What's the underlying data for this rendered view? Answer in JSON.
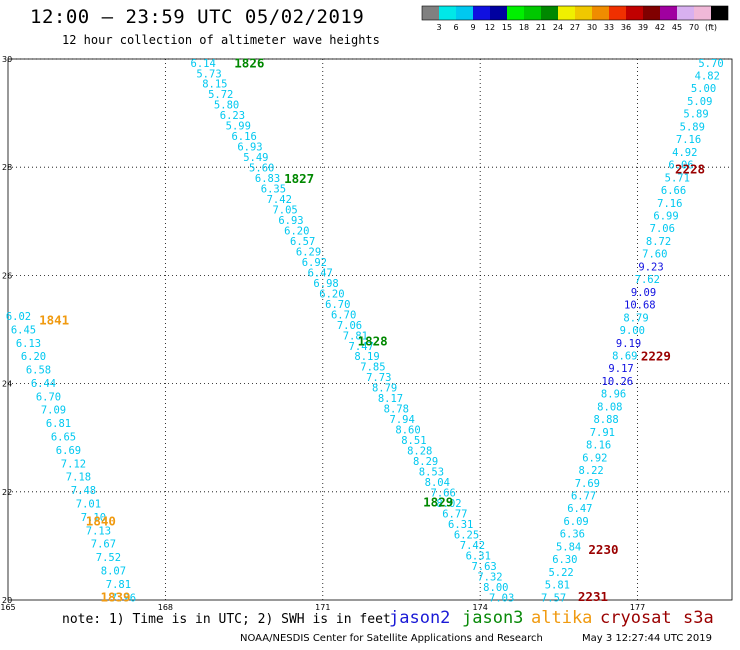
{
  "header": {
    "title": "12:00 – 23:59 UTC 05/02/2019",
    "subtitle": "12 hour collection of altimeter wave heights"
  },
  "footer": {
    "note": "note: 1) Time is in UTC; 2) SWH is in feet",
    "credit": "NOAA/NESDIS Center for Satellite Applications and Research",
    "timestamp": "May  3 12:27:44 UTC 2019"
  },
  "satellites": [
    {
      "name": "jason2",
      "color": "#1a1ad6"
    },
    {
      "name": "jason3",
      "color": "#0a8a0a"
    },
    {
      "name": "altika",
      "color": "#f09a10"
    },
    {
      "name": "cryosat",
      "color": "#9a0000"
    },
    {
      "name": "s3a",
      "color": "#9a0000"
    }
  ],
  "chart_data": {
    "type": "scatter",
    "title": "12:00 – 23:59 UTC 05/02/2019",
    "subtitle": "12 hour collection of altimeter wave heights",
    "xlim": [
      165,
      178.8
    ],
    "ylim": [
      20,
      30
    ],
    "x_ticks": [
      "165",
      "168",
      "171",
      "174",
      "177"
    ],
    "x_tick_values": [
      165,
      168,
      171,
      174,
      177
    ],
    "y_ticks": [
      "20",
      "22",
      "24",
      "26",
      "28",
      "30"
    ],
    "y_tick_values": [
      20,
      22,
      24,
      26,
      28,
      30
    ],
    "grid": true,
    "colorbar": {
      "labels": [
        "3",
        "6",
        "9",
        "12",
        "15",
        "18",
        "21",
        "24",
        "27",
        "30",
        "33",
        "36",
        "39",
        "42",
        "45",
        "70",
        "(ft)"
      ],
      "colors": [
        "#808080",
        "#00e8e8",
        "#00c8f0",
        "#1010e0",
        "#0000a0",
        "#00f000",
        "#00c800",
        "#008800",
        "#f0f000",
        "#f0c800",
        "#f08c00",
        "#f03000",
        "#c00000",
        "#800000",
        "#a000a0",
        "#d8b0f0",
        "#f0b8d8",
        "#000000"
      ]
    },
    "tracks": [
      {
        "x0": 168.72,
        "x1": 174.41,
        "points": [
          "6.14",
          "5.73",
          "8.15",
          "5.72",
          "5.80",
          "6.23",
          "5.99",
          "6.16",
          "6.93",
          "5.49",
          "5.60",
          "6.83",
          "6.35",
          "7.42",
          "7.05",
          "6.93",
          "6.20",
          "6.57",
          "6.29",
          "6.92",
          "6.47",
          "6.98",
          "6.20",
          "6.70",
          "6.70",
          "7.06",
          "7.81",
          "7.47",
          "8.19",
          "7.85",
          "7.73",
          "8.79",
          "8.17",
          "8.78",
          "7.94",
          "8.60",
          "8.51",
          "8.28",
          "8.29",
          "8.53",
          "8.04",
          "7.66",
          "8.02",
          "6.77",
          "6.31",
          "6.25",
          "7.42",
          "6.31",
          "7.63",
          "7.32",
          "8.00",
          "7.03"
        ],
        "colors": [
          "#00c8f0",
          "#00c8f0",
          "#00c8f0",
          "#00c8f0",
          "#00c8f0",
          "#00c8f0",
          "#00c8f0",
          "#00c8f0",
          "#00c8f0",
          "#00c8f0",
          "#00c8f0",
          "#00c8f0",
          "#00c8f0",
          "#00c8f0",
          "#00c8f0",
          "#00c8f0",
          "#00c8f0",
          "#00c8f0",
          "#00c8f0",
          "#00c8f0",
          "#00c8f0",
          "#00c8f0",
          "#00c8f0",
          "#00c8f0",
          "#00c8f0",
          "#00c8f0",
          "#00c8f0",
          "#00c8f0",
          "#00c8f0",
          "#00c8f0",
          "#00c8f0",
          "#00c8f0",
          "#00c8f0",
          "#00c8f0",
          "#00c8f0",
          "#00c8f0",
          "#00c8f0",
          "#00c8f0",
          "#00c8f0",
          "#00c8f0",
          "#00c8f0",
          "#00c8f0",
          "#00c8f0",
          "#00c8f0",
          "#00c8f0",
          "#00c8f0",
          "#00c8f0",
          "#00c8f0",
          "#00c8f0",
          "#00c8f0",
          "#00c8f0",
          "#00c8f0"
        ]
      },
      {
        "x0": 165.2,
        "x1": 167.2,
        "points": [
          "6.02",
          "6.45",
          "6.13",
          "6.20",
          "6.58",
          "6.44",
          "6.70",
          "7.09",
          "6.81",
          "6.65",
          "6.69",
          "7.12",
          "7.18",
          "7.48",
          "7.01",
          "7.10",
          "7.13",
          "7.67",
          "7.52",
          "8.07",
          "7.81",
          "7.96"
        ],
        "colors": [
          "#00c8f0",
          "#00c8f0",
          "#00c8f0",
          "#00c8f0",
          "#00c8f0",
          "#00c8f0",
          "#00c8f0",
          "#00c8f0",
          "#00c8f0",
          "#00c8f0",
          "#00c8f0",
          "#00c8f0",
          "#00c8f0",
          "#00c8f0",
          "#00c8f0",
          "#00c8f0",
          "#00c8f0",
          "#00c8f0",
          "#00c8f0",
          "#00c8f0",
          "#00c8f0",
          "#00c8f0"
        ]
      },
      {
        "x0": 178.4,
        "x1": 175.4,
        "points": [
          "5.70",
          "4.82",
          "5.00",
          "5.09",
          "5.89",
          "5.89",
          "7.16",
          "4.92",
          "6.06",
          "5.71",
          "6.66",
          "7.16",
          "6.99",
          "7.06",
          "8.72",
          "7.60",
          "9.23",
          "7.62",
          "9.09",
          "10.68",
          "8.79",
          "9.00",
          "9.19",
          "8.69",
          "9.17",
          "10.26",
          "8.96",
          "8.08",
          "8.88",
          "7.91",
          "8.16",
          "6.92",
          "8.22",
          "7.69",
          "6.77",
          "6.47",
          "6.09",
          "6.36",
          "5.84",
          "6.30",
          "5.22",
          "5.81",
          "7.57"
        ],
        "colors": [
          "#00c8f0",
          "#00c8f0",
          "#00c8f0",
          "#00c8f0",
          "#00c8f0",
          "#00c8f0",
          "#00c8f0",
          "#00c8f0",
          "#00c8f0",
          "#00c8f0",
          "#00c8f0",
          "#00c8f0",
          "#00c8f0",
          "#00c8f0",
          "#00c8f0",
          "#00c8f0",
          "#1010e0",
          "#00c8f0",
          "#1010e0",
          "#1010e0",
          "#00c8f0",
          "#00c8f0",
          "#1010e0",
          "#00c8f0",
          "#1010e0",
          "#1010e0",
          "#00c8f0",
          "#00c8f0",
          "#00c8f0",
          "#00c8f0",
          "#00c8f0",
          "#00c8f0",
          "#00c8f0",
          "#00c8f0",
          "#00c8f0",
          "#00c8f0",
          "#00c8f0",
          "#00c8f0",
          "#00c8f0",
          "#00c8f0",
          "#00c8f0",
          "#00c8f0",
          "#00c8f0"
        ]
      }
    ],
    "pass_labels": [
      {
        "text": "1826",
        "x": 169.6,
        "y": 29.92,
        "color": "#008800"
      },
      {
        "text": "1827",
        "x": 170.55,
        "y": 27.78,
        "color": "#008800"
      },
      {
        "text": "1828",
        "x": 171.95,
        "y": 24.78,
        "color": "#008800"
      },
      {
        "text": "1829",
        "x": 173.2,
        "y": 21.8,
        "color": "#008800"
      },
      {
        "text": "1841",
        "x": 165.88,
        "y": 25.17,
        "color": "#f09a10"
      },
      {
        "text": "1840",
        "x": 166.77,
        "y": 21.45,
        "color": "#f09a10"
      },
      {
        "text": "1839",
        "x": 167.05,
        "y": 20.05,
        "color": "#f09a10"
      },
      {
        "text": "2228",
        "x": 178.0,
        "y": 27.96,
        "color": "#9a0000"
      },
      {
        "text": "2229",
        "x": 177.35,
        "y": 24.5,
        "color": "#9a0000"
      },
      {
        "text": "2230",
        "x": 176.35,
        "y": 20.92,
        "color": "#9a0000"
      },
      {
        "text": "2231",
        "x": 176.15,
        "y": 20.06,
        "color": "#9a0000"
      }
    ]
  }
}
